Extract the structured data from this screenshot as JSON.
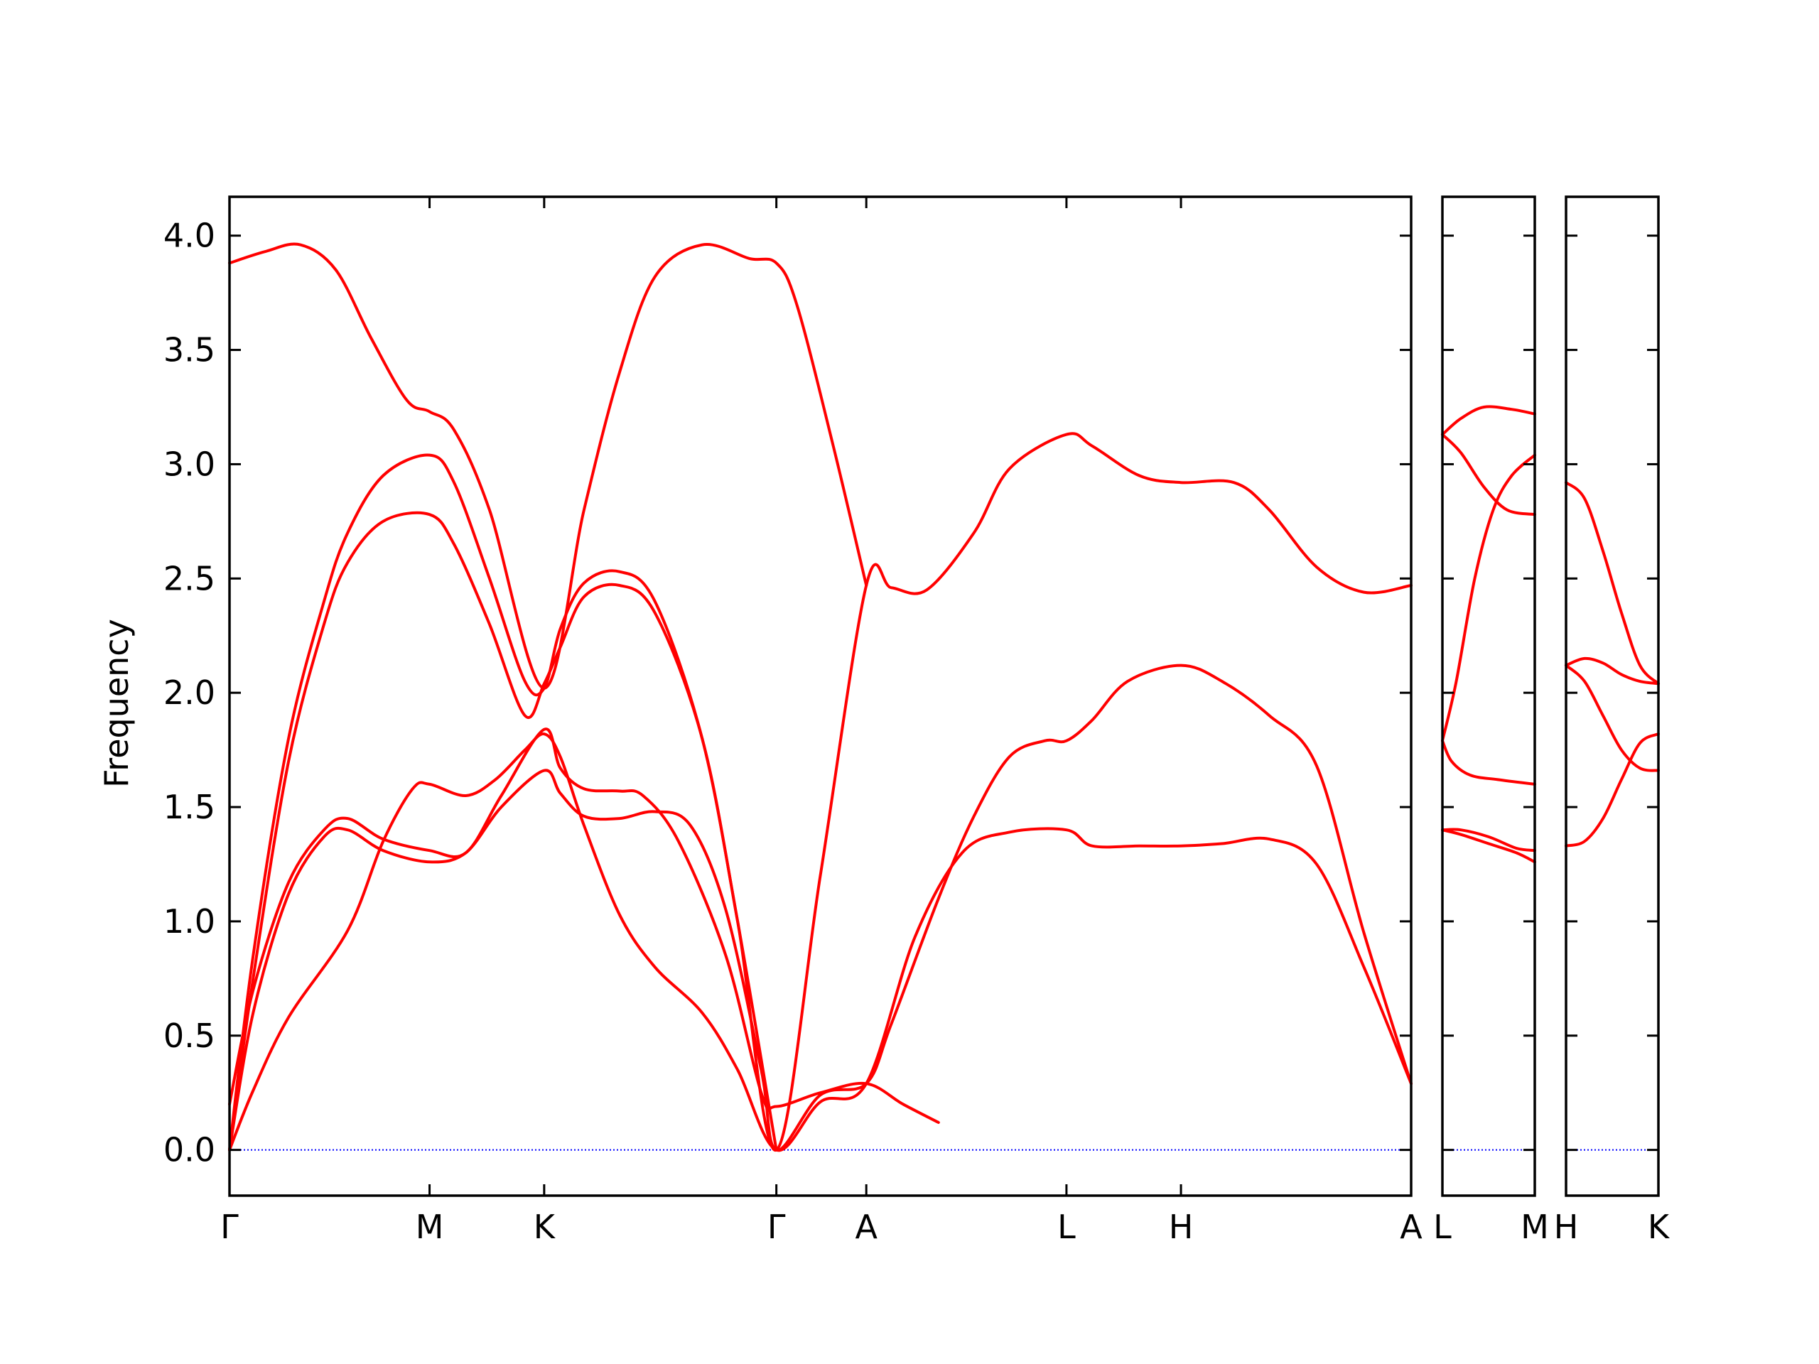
{
  "chart_data": {
    "type": "line",
    "ylabel": "Frequency",
    "ylim": [
      -0.2,
      4.17
    ],
    "yticks": [
      0.0,
      0.5,
      1.0,
      1.5,
      2.0,
      2.5,
      3.0,
      3.5,
      4.0
    ],
    "ytick_labels": [
      "0.0",
      "0.5",
      "1.0",
      "1.5",
      "2.0",
      "2.5",
      "3.0",
      "3.5",
      "4.0"
    ],
    "line_color": "#ff0000",
    "zero_line_color": "#0000ff",
    "grid": false,
    "panels": [
      {
        "xlim": [
          0,
          1
        ],
        "labels": [
          "Γ",
          "M",
          "K",
          "Γ",
          "A",
          "L",
          "H",
          "A"
        ],
        "positions": [
          0,
          0.1693,
          0.2663,
          0.4628,
          0.5389,
          0.7083,
          0.8052,
          1.0
        ],
        "bands": [
          [
            [
              0,
              0
            ],
            [
              0.02,
              0.26
            ],
            [
              0.05,
              0.58
            ],
            [
              0.1,
              0.96
            ],
            [
              0.13,
              1.35
            ],
            [
              0.155,
              1.58
            ],
            [
              0.1693,
              1.6
            ],
            [
              0.2,
              1.55
            ],
            [
              0.225,
              1.62
            ],
            [
              0.25,
              1.75
            ],
            [
              0.2663,
              1.82
            ],
            [
              0.28,
              1.72
            ],
            [
              0.3,
              1.42
            ],
            [
              0.33,
              1.03
            ],
            [
              0.36,
              0.8
            ],
            [
              0.4,
              0.6
            ],
            [
              0.43,
              0.35
            ],
            [
              0.4628,
              0.0
            ],
            [
              0.5,
              0.21
            ],
            [
              0.5389,
              0.29
            ],
            [
              0.58,
              0.93
            ],
            [
              0.62,
              1.3
            ],
            [
              0.66,
              1.39
            ],
            [
              0.7083,
              1.4
            ],
            [
              0.73,
              1.33
            ],
            [
              0.77,
              1.33
            ],
            [
              0.8052,
              1.33
            ],
            [
              0.84,
              1.34
            ],
            [
              0.88,
              1.36
            ],
            [
              0.92,
              1.25
            ],
            [
              0.96,
              0.8
            ],
            [
              1.0,
              0.29
            ]
          ],
          [
            [
              0,
              0
            ],
            [
              0.02,
              0.6
            ],
            [
              0.05,
              1.12
            ],
            [
              0.08,
              1.37
            ],
            [
              0.1,
              1.4
            ],
            [
              0.13,
              1.31
            ],
            [
              0.1693,
              1.26
            ],
            [
              0.2,
              1.3
            ],
            [
              0.23,
              1.5
            ],
            [
              0.2663,
              1.66
            ],
            [
              0.28,
              1.56
            ],
            [
              0.3,
              1.46
            ],
            [
              0.33,
              1.45
            ],
            [
              0.36,
              1.48
            ],
            [
              0.39,
              1.42
            ],
            [
              0.42,
              1.05
            ],
            [
              0.45,
              0.35
            ],
            [
              0.4628,
              0.0
            ],
            [
              0.5,
              0.24
            ],
            [
              0.5389,
              0.29
            ],
            [
              0.56,
              0.55
            ],
            [
              0.6,
              1.1
            ],
            [
              0.63,
              1.46
            ],
            [
              0.66,
              1.72
            ],
            [
              0.69,
              1.79
            ],
            [
              0.7083,
              1.79
            ],
            [
              0.73,
              1.88
            ],
            [
              0.76,
              2.05
            ],
            [
              0.8052,
              2.12
            ],
            [
              0.84,
              2.05
            ],
            [
              0.88,
              1.9
            ],
            [
              0.92,
              1.68
            ],
            [
              0.96,
              0.95
            ],
            [
              1.0,
              0.29
            ]
          ],
          [
            [
              0,
              0.2
            ],
            [
              0.02,
              0.7
            ],
            [
              0.05,
              1.17
            ],
            [
              0.08,
              1.4
            ],
            [
              0.1,
              1.45
            ],
            [
              0.13,
              1.36
            ],
            [
              0.1693,
              1.31
            ],
            [
              0.2,
              1.3
            ],
            [
              0.23,
              1.55
            ],
            [
              0.2663,
              1.84
            ],
            [
              0.28,
              1.67
            ],
            [
              0.3,
              1.58
            ],
            [
              0.33,
              1.57
            ],
            [
              0.35,
              1.55
            ],
            [
              0.38,
              1.35
            ],
            [
              0.42,
              0.85
            ],
            [
              0.45,
              0.25
            ],
            [
              0.4628,
              0.19
            ],
            [
              0.5,
              0.25
            ],
            [
              0.5389,
              0.29
            ],
            [
              0.57,
              0.2
            ],
            [
              0.6,
              0.12
            ]
          ],
          [
            [
              0,
              0
            ],
            [
              0.02,
              0.75
            ],
            [
              0.05,
              1.7
            ],
            [
              0.08,
              2.3
            ],
            [
              0.1,
              2.57
            ],
            [
              0.13,
              2.75
            ],
            [
              0.1693,
              2.78
            ],
            [
              0.19,
              2.65
            ],
            [
              0.22,
              2.3
            ],
            [
              0.25,
              1.9
            ],
            [
              0.2663,
              2.04
            ],
            [
              0.28,
              2.2
            ],
            [
              0.3,
              2.42
            ],
            [
              0.33,
              2.47
            ],
            [
              0.36,
              2.35
            ],
            [
              0.4,
              1.8
            ],
            [
              0.43,
              1.0
            ],
            [
              0.4628,
              0.0
            ],
            [
              0.5,
              1.2
            ],
            [
              0.5389,
              2.47
            ],
            [
              0.56,
              2.46
            ],
            [
              0.59,
              2.45
            ],
            [
              0.63,
              2.7
            ],
            [
              0.66,
              2.98
            ],
            [
              0.7083,
              3.13
            ],
            [
              0.73,
              3.08
            ],
            [
              0.77,
              2.95
            ],
            [
              0.8052,
              2.92
            ],
            [
              0.85,
              2.92
            ],
            [
              0.88,
              2.8
            ],
            [
              0.92,
              2.55
            ],
            [
              0.96,
              2.44
            ],
            [
              1.0,
              2.47
            ]
          ],
          [
            [
              0,
              0
            ],
            [
              0.02,
              0.85
            ],
            [
              0.05,
              1.8
            ],
            [
              0.08,
              2.4
            ],
            [
              0.1,
              2.7
            ],
            [
              0.13,
              2.95
            ],
            [
              0.1693,
              3.04
            ],
            [
              0.19,
              2.92
            ],
            [
              0.22,
              2.5
            ],
            [
              0.25,
              2.05
            ],
            [
              0.2663,
              2.02
            ],
            [
              0.28,
              2.28
            ],
            [
              0.3,
              2.48
            ],
            [
              0.33,
              2.53
            ],
            [
              0.36,
              2.4
            ],
            [
              0.4,
              1.8
            ],
            [
              0.43,
              1.0
            ],
            [
              0.4628,
              0.0
            ]
          ],
          [
            [
              0,
              3.88
            ],
            [
              0.03,
              3.93
            ],
            [
              0.06,
              3.96
            ],
            [
              0.09,
              3.85
            ],
            [
              0.12,
              3.55
            ],
            [
              0.15,
              3.28
            ],
            [
              0.1693,
              3.23
            ],
            [
              0.19,
              3.15
            ],
            [
              0.22,
              2.8
            ],
            [
              0.2663,
              2.02
            ],
            [
              0.3,
              2.8
            ],
            [
              0.33,
              3.4
            ],
            [
              0.36,
              3.82
            ],
            [
              0.4,
              3.96
            ],
            [
              0.44,
              3.9
            ],
            [
              0.4628,
              3.88
            ],
            [
              0.48,
              3.7
            ],
            [
              0.51,
              3.1
            ],
            [
              0.5389,
              2.47
            ]
          ]
        ]
      },
      {
        "xlim": [
          0,
          1
        ],
        "labels": [
          "L",
          "M"
        ],
        "positions": [
          0,
          1.0
        ],
        "bands": [
          [
            [
              0,
              1.4
            ],
            [
              0.2,
              1.38
            ],
            [
              0.5,
              1.34
            ],
            [
              0.8,
              1.3
            ],
            [
              1.0,
              1.26
            ]
          ],
          [
            [
              0,
              1.4
            ],
            [
              0.2,
              1.4
            ],
            [
              0.5,
              1.37
            ],
            [
              0.8,
              1.32
            ],
            [
              1.0,
              1.31
            ]
          ],
          [
            [
              0,
              1.79
            ],
            [
              0.1,
              1.7
            ],
            [
              0.3,
              1.64
            ],
            [
              0.6,
              1.62
            ],
            [
              1.0,
              1.6
            ]
          ],
          [
            [
              0,
              1.79
            ],
            [
              0.15,
              2.05
            ],
            [
              0.35,
              2.5
            ],
            [
              0.55,
              2.8
            ],
            [
              0.75,
              2.95
            ],
            [
              1.0,
              3.04
            ]
          ],
          [
            [
              0,
              3.13
            ],
            [
              0.2,
              3.05
            ],
            [
              0.45,
              2.9
            ],
            [
              0.7,
              2.8
            ],
            [
              1.0,
              2.78
            ]
          ],
          [
            [
              0,
              3.13
            ],
            [
              0.2,
              3.2
            ],
            [
              0.45,
              3.25
            ],
            [
              0.75,
              3.24
            ],
            [
              1.0,
              3.22
            ]
          ]
        ]
      },
      {
        "xlim": [
          0,
          1
        ],
        "labels": [
          "H",
          "K"
        ],
        "positions": [
          0,
          1.0
        ],
        "bands": [
          [
            [
              0,
              1.33
            ],
            [
              0.2,
              1.35
            ],
            [
              0.4,
              1.45
            ],
            [
              0.6,
              1.62
            ],
            [
              0.8,
              1.78
            ],
            [
              1.0,
              1.82
            ]
          ],
          [
            [
              0,
              2.12
            ],
            [
              0.2,
              2.05
            ],
            [
              0.4,
              1.9
            ],
            [
              0.6,
              1.75
            ],
            [
              0.8,
              1.67
            ],
            [
              1.0,
              1.66
            ]
          ],
          [
            [
              0,
              2.12
            ],
            [
              0.2,
              2.15
            ],
            [
              0.4,
              2.13
            ],
            [
              0.6,
              2.08
            ],
            [
              0.8,
              2.05
            ],
            [
              1.0,
              2.04
            ]
          ],
          [
            [
              0,
              2.92
            ],
            [
              0.2,
              2.85
            ],
            [
              0.4,
              2.62
            ],
            [
              0.6,
              2.35
            ],
            [
              0.8,
              2.12
            ],
            [
              1.0,
              2.04
            ]
          ]
        ]
      }
    ]
  }
}
